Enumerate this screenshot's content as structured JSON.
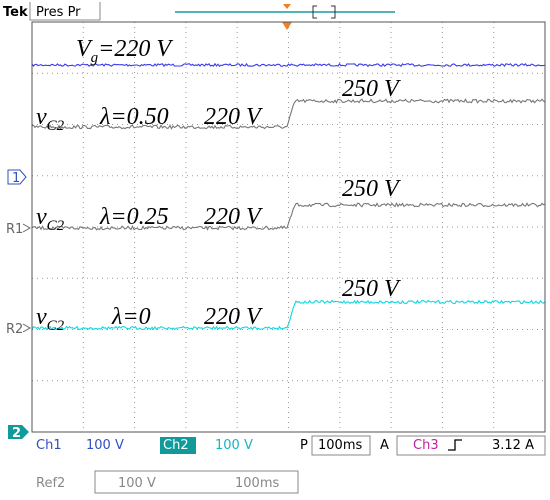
{
  "header": {
    "brand": "Tek",
    "mode": "Pres Pr"
  },
  "markers": [
    "1",
    "R1",
    "R2",
    "2"
  ],
  "annotations": {
    "vg": {
      "symbol": "V",
      "sub": "g",
      "text": "=220 V"
    },
    "trace1": {
      "symbol": "v",
      "sub": "C2",
      "lambda": "λ=0.50",
      "before": "220 V",
      "after": "250 V"
    },
    "trace2": {
      "symbol": "v",
      "sub": "C2",
      "lambda": "λ=0.25",
      "before": "220 V",
      "after": "250 V"
    },
    "trace3": {
      "symbol": "v",
      "sub": "C2",
      "lambda": "λ=0",
      "before": "220 V",
      "after": "250 V"
    }
  },
  "status": {
    "ch1": "Ch1",
    "ch1_scale": "100 V",
    "ch2": "Ch2",
    "ch2_scale": "100 V",
    "timebase_label": "P",
    "timebase": "100ms",
    "trigger_mode": "A",
    "trigger_source": "Ch3",
    "trigger_level": "3.12 A"
  },
  "ref": {
    "name": "Ref2",
    "scale": "100 V",
    "timebase": "100ms"
  }
}
